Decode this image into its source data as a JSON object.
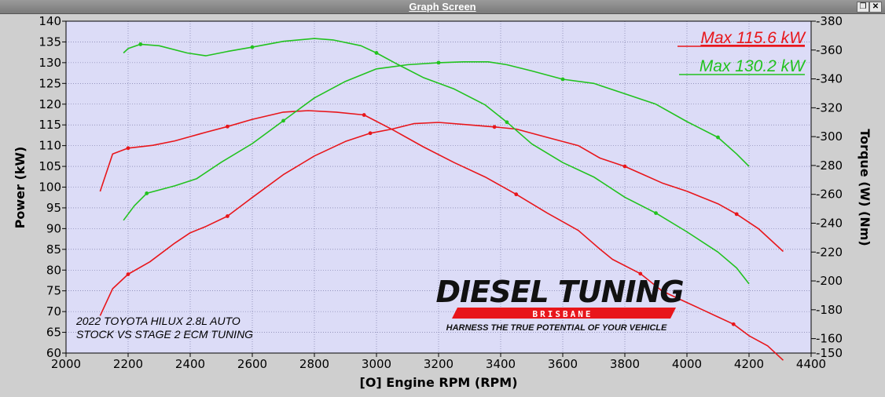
{
  "window": {
    "title": "Graph Screen",
    "restore_glyph": "❐",
    "close_glyph": "✕"
  },
  "legend": {
    "max_red": "Max 115.6 kW",
    "max_green": "Max 130.2 kW",
    "red_color": "#e8161b",
    "green_color": "#22c21f"
  },
  "annotation": {
    "line1": "2022 TOYOTA HILUX 2.8L AUTO",
    "line2": "STOCK VS STAGE 2 ECM TUNING"
  },
  "logo": {
    "title": "DIESEL TUNING",
    "subtitle": "BRISBANE",
    "tagline": "HARNESS THE TRUE POTENTIAL OF YOUR VEHICLE"
  },
  "chart_data": {
    "type": "line",
    "xlabel": "[O] Engine RPM (RPM)",
    "ylabel": "Power (kW)",
    "y2label": "Torque (W) (Nm)",
    "xlim": [
      2000,
      4400
    ],
    "ylim": [
      60,
      140
    ],
    "y2lim": [
      150,
      380
    ],
    "x_ticks": [
      2000,
      2200,
      2400,
      2600,
      2800,
      3000,
      3200,
      3400,
      3600,
      3800,
      4000,
      4200,
      4400
    ],
    "y_ticks": [
      60,
      65,
      70,
      75,
      80,
      85,
      90,
      95,
      100,
      105,
      110,
      115,
      120,
      125,
      130,
      135,
      140
    ],
    "y2_ticks": [
      150,
      160,
      180,
      200,
      220,
      240,
      260,
      280,
      300,
      320,
      340,
      360,
      380
    ],
    "grid": true,
    "background": "#dcdcf7",
    "series": [
      {
        "color": "#e8161b",
        "axis": "torque",
        "marker_every": 12,
        "x": [
          2110,
          2150,
          2200,
          2280,
          2350,
          2400,
          2450,
          2520,
          2600,
          2700,
          2780,
          2870,
          2960,
          3050,
          3150,
          3250,
          3350,
          3450,
          3550,
          3650,
          3720,
          3760,
          3850,
          3920,
          3980,
          4050,
          4100,
          4150,
          4200,
          4260,
          4310
        ],
        "y": [
          262,
          288,
          292,
          294,
          297,
          300,
          303,
          307,
          312,
          317,
          318,
          317,
          315,
          305,
          293,
          282,
          272,
          260,
          247,
          235,
          222,
          215,
          205,
          193,
          187,
          180,
          175,
          170,
          162,
          155,
          145
        ]
      },
      {
        "color": "#e8161b",
        "axis": "power",
        "marker_every": 12,
        "x": [
          2110,
          2150,
          2200,
          2270,
          2350,
          2400,
          2450,
          2520,
          2600,
          2700,
          2800,
          2900,
          2980,
          3050,
          3120,
          3200,
          3300,
          3380,
          3450,
          3550,
          3650,
          3720,
          3800,
          3860,
          3920,
          4000,
          4100,
          4160,
          4230,
          4310
        ],
        "y": [
          69,
          75.5,
          79,
          82,
          86.5,
          89,
          90.5,
          93,
          97.5,
          103,
          107.5,
          111,
          113,
          114,
          115.3,
          115.6,
          115,
          114.5,
          114,
          112,
          110,
          107,
          105,
          103,
          101,
          99,
          96,
          93.5,
          90,
          84.5
        ]
      },
      {
        "color": "#22c21f",
        "axis": "torque",
        "marker_every": 12,
        "x": [
          2185,
          2200,
          2240,
          2300,
          2390,
          2450,
          2520,
          2600,
          2700,
          2800,
          2860,
          2950,
          3000,
          3060,
          3150,
          3250,
          3350,
          3420,
          3500,
          3600,
          3700,
          3800,
          3900,
          4000,
          4100,
          4160,
          4200
        ],
        "y": [
          358,
          361,
          364,
          363,
          358,
          356,
          359,
          362,
          366,
          368,
          367,
          363,
          358,
          351,
          341,
          333,
          322,
          310,
          295,
          282,
          272,
          258,
          247,
          234,
          220,
          209,
          198
        ]
      },
      {
        "color": "#22c21f",
        "axis": "power",
        "marker_every": 12,
        "x": [
          2185,
          2220,
          2260,
          2350,
          2420,
          2500,
          2600,
          2700,
          2800,
          2900,
          3000,
          3100,
          3200,
          3280,
          3360,
          3420,
          3500,
          3600,
          3700,
          3800,
          3900,
          4000,
          4100,
          4160,
          4200
        ],
        "y": [
          92,
          95.5,
          98.5,
          100.3,
          102,
          106,
          110.5,
          116,
          121.5,
          125.5,
          128.5,
          129.5,
          130,
          130.2,
          130.2,
          129.5,
          128,
          126,
          125,
          122.5,
          120,
          115.8,
          112,
          108,
          105
        ]
      }
    ]
  }
}
